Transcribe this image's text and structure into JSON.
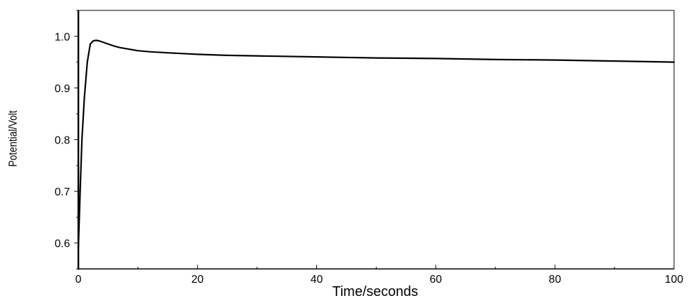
{
  "chart_data": {
    "type": "line",
    "title": "",
    "xlabel": "Time/seconds",
    "ylabel": "Potential/Volt",
    "xlim": [
      0,
      100
    ],
    "ylim": [
      0.55,
      1.05
    ],
    "x_ticks": [
      0,
      20,
      40,
      60,
      80,
      100
    ],
    "x_tick_labels": [
      "0",
      "20",
      "40",
      "60",
      "80",
      "100"
    ],
    "y_ticks": [
      0.6,
      0.7,
      0.8,
      0.9,
      1.0
    ],
    "y_tick_labels": [
      "0.6",
      "0.7",
      "0.8",
      "0.9",
      "1.0"
    ],
    "grid": false,
    "legend": "none",
    "line_color": "#000000",
    "series": [
      {
        "x": [
          0,
          0.3,
          0.6,
          1.0,
          1.5,
          2.0,
          2.5,
          3.0,
          3.5,
          4.0,
          5,
          6,
          7,
          8,
          10,
          12,
          15,
          20,
          25,
          30,
          40,
          50,
          60,
          70,
          80,
          90,
          100
        ],
        "y": [
          0.59,
          0.7,
          0.8,
          0.88,
          0.95,
          0.985,
          0.991,
          0.992,
          0.991,
          0.989,
          0.985,
          0.981,
          0.978,
          0.976,
          0.972,
          0.97,
          0.968,
          0.965,
          0.963,
          0.962,
          0.96,
          0.958,
          0.957,
          0.955,
          0.954,
          0.952,
          0.95
        ]
      }
    ]
  }
}
